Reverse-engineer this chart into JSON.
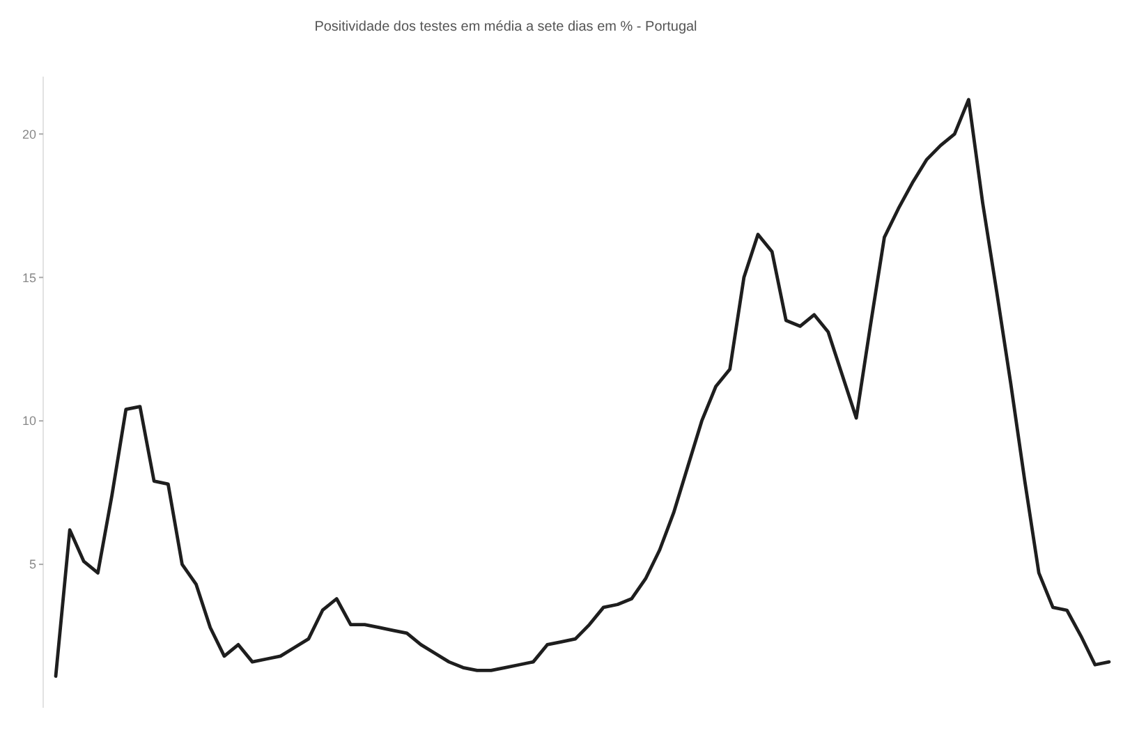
{
  "chart_data": {
    "type": "line",
    "title": "Positividade dos testes em média a sete dias em % - Portugal",
    "categories": [
      null,
      null,
      null,
      null,
      null,
      null,
      null,
      null,
      null,
      null,
      null,
      null,
      null,
      null,
      null,
      null,
      null,
      null,
      null,
      null,
      null,
      null,
      null,
      null,
      null,
      null,
      null,
      null,
      null,
      null,
      null,
      null,
      null,
      null,
      null,
      null,
      null,
      null,
      null,
      null,
      null,
      null,
      null,
      null,
      null,
      null,
      null,
      null,
      null,
      null,
      null,
      null,
      null,
      null,
      null,
      null,
      null,
      null,
      null,
      null,
      null,
      null,
      null,
      null,
      null,
      null,
      null,
      null,
      null,
      null,
      null,
      null,
      null,
      null,
      null,
      null
    ],
    "series": [
      {
        "color": "#1e1e1e",
        "values": [
          1.1,
          6.2,
          5.1,
          4.7,
          7.4,
          10.4,
          10.5,
          7.9,
          7.8,
          5.0,
          4.3,
          2.8,
          1.8,
          2.2,
          1.6,
          1.7,
          1.8,
          2.1,
          2.4,
          3.4,
          3.8,
          2.9,
          2.9,
          2.8,
          2.7,
          2.6,
          2.2,
          1.9,
          1.6,
          1.4,
          1.3,
          1.3,
          1.4,
          1.5,
          1.6,
          2.2,
          2.3,
          2.4,
          2.9,
          3.5,
          3.6,
          3.8,
          4.5,
          5.5,
          6.8,
          8.4,
          10.0,
          11.2,
          11.8,
          15.0,
          16.5,
          15.9,
          13.5,
          13.3,
          13.7,
          13.1,
          11.6,
          10.1,
          13.3,
          16.4,
          17.4,
          18.3,
          19.1,
          19.6,
          20.0,
          21.2,
          17.6,
          14.5,
          11.3,
          7.9,
          4.7,
          3.5,
          3.4,
          2.5,
          1.5,
          1.6
        ]
      }
    ],
    "ylim": [
      0,
      22
    ],
    "yticks": [
      5,
      10,
      15,
      20
    ],
    "grid": false
  }
}
